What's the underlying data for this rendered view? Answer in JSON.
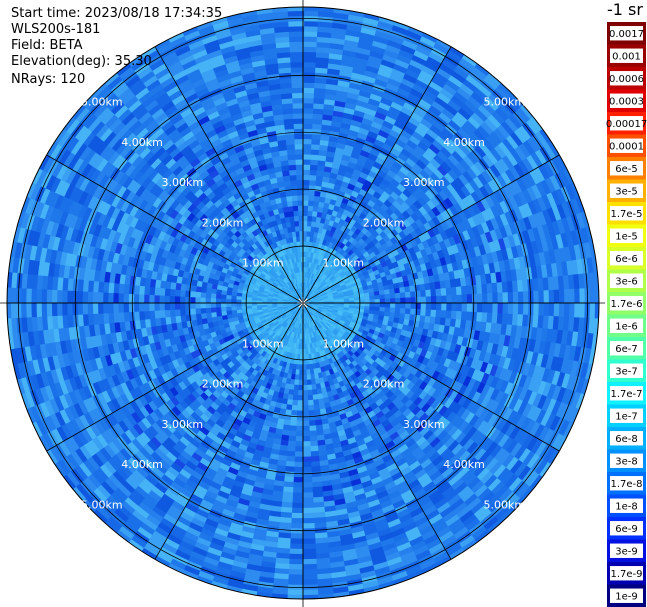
{
  "header": {
    "start_time": "Start time: 2023/08/18 17:34:35",
    "device": "WLS200s-181",
    "field": "Field: BETA",
    "elevation": "Elevation(deg): 35.30",
    "nrays": "NRays: 120"
  },
  "colorbar": {
    "unit": "-1 sr",
    "labels": [
      "0.0017",
      "0.001",
      "0.0006",
      "0.0003",
      "0.00017",
      "0.0001",
      "6e-5",
      "3e-5",
      "1.7e-5",
      "1e-5",
      "6e-6",
      "3e-6",
      "1.7e-6",
      "1e-6",
      "6e-7",
      "3e-7",
      "1.7e-7",
      "1e-7",
      "6e-8",
      "3e-8",
      "1.7e-8",
      "1e-8",
      "6e-9",
      "3e-9",
      "1.7e-9",
      "1e-9"
    ],
    "colors": [
      "#800000",
      "#9a0000",
      "#bc0000",
      "#e00000",
      "#ff2000",
      "#ff5000",
      "#ff8000",
      "#ffb000",
      "#ffe000",
      "#f0ff10",
      "#d8ff28",
      "#b0ff48",
      "#90ff68",
      "#70ff88",
      "#50ffa8",
      "#30ffd0",
      "#10f0ff",
      "#00d0ff",
      "#00b0ff",
      "#0090ff",
      "#0070ff",
      "#0050ff",
      "#0030ff",
      "#0010e0",
      "#0000b0",
      "#000080"
    ]
  },
  "chart_data": {
    "type": "heatmap",
    "projection": "polar (PPI scan)",
    "field": "BETA",
    "nrays": 120,
    "range_rings_km": [
      1,
      2,
      3,
      4,
      5
    ],
    "ring_labels": [
      "1.00km",
      "2.00km",
      "3.00km",
      "4.00km",
      "5.00km"
    ],
    "max_range_km": 5.2,
    "spokes_deg": [
      0,
      30,
      60,
      90,
      120,
      150,
      180,
      210,
      240,
      270,
      300,
      330
    ],
    "inner_zone_km": 1.05,
    "typical_value": "1.7e-8 to 6e-8",
    "colors": {
      "inner": [
        "#3fb5f5",
        "#36a8f3",
        "#48bff7",
        "#2e9cf0"
      ],
      "outer": [
        "#1e78ea",
        "#2e8cf0",
        "#1768e6",
        "#3aa0f3",
        "#0f58e0",
        "#2580ee",
        "#45b3f5",
        "#1a70e8"
      ],
      "hot": [
        "#1040e0",
        "#0830d8",
        "#1848e4"
      ]
    }
  }
}
